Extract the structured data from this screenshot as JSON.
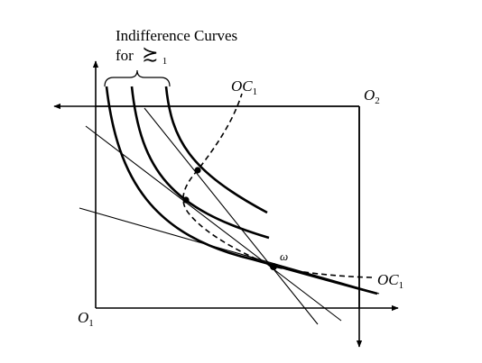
{
  "title_line1": "Indifference Curves",
  "title_line2_prefix": "for",
  "preference_symbol": "≿",
  "preference_subscript": "1",
  "oc_label": "OC",
  "oc_subscript": "1",
  "origin_1_label": "O",
  "origin_1_subscript": "1",
  "origin_2_label": "O",
  "origin_2_subscript": "2",
  "endowment_label": "ω",
  "colors": {
    "ink": "#000000",
    "background": "#ffffff"
  }
}
